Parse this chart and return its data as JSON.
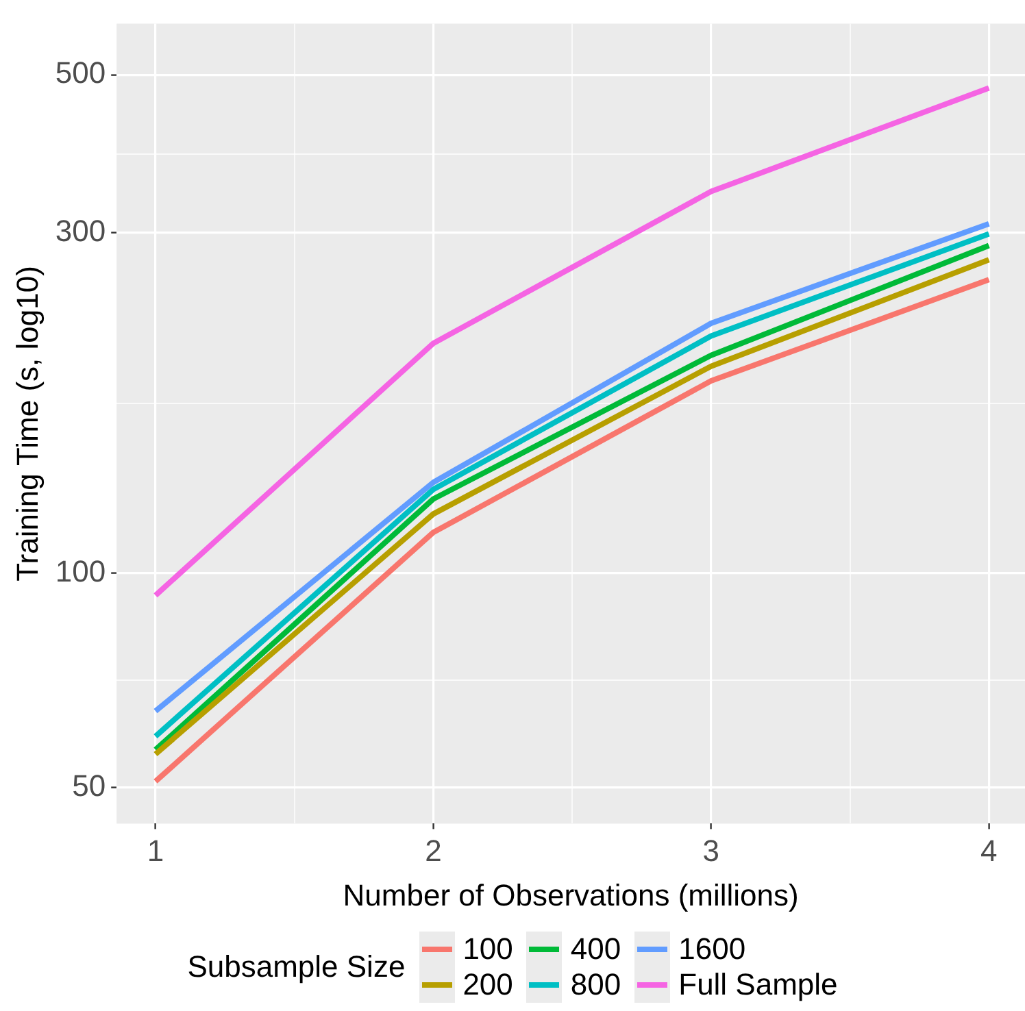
{
  "chart_data": {
    "type": "line",
    "xlabel": "Number of Observations (millions)",
    "ylabel": "Training Time (s, log10)",
    "legend_title": "Subsample Size",
    "x": [
      1,
      2,
      3,
      4
    ],
    "series": [
      {
        "name": "100",
        "color": "#f8766d",
        "values": [
          51,
          114,
          186,
          258
        ]
      },
      {
        "name": "200",
        "color": "#b79f00",
        "values": [
          55.7,
          121,
          195,
          275
        ]
      },
      {
        "name": "400",
        "color": "#00ba38",
        "values": [
          56.5,
          127,
          202,
          288
        ]
      },
      {
        "name": "800",
        "color": "#00bfc4",
        "values": [
          59,
          131,
          215,
          299
        ]
      },
      {
        "name": "1600",
        "color": "#619cff",
        "values": [
          64,
          134,
          224,
          309
        ]
      },
      {
        "name": "Full Sample",
        "color": "#f564e3",
        "values": [
          93,
          210,
          343,
          479
        ]
      }
    ],
    "xlim": [
      0.86,
      4.13
    ],
    "xticks": [
      1,
      {
        "value": 1.5,
        "label": null
      },
      2,
      {
        "value": 2.5,
        "label": null
      },
      3,
      {
        "value": 3.5,
        "label": null
      },
      4
    ],
    "ylim": [
      44.5,
      590
    ],
    "yticks": [
      50,
      {
        "value": 70.7,
        "label": null
      },
      100,
      {
        "value": 173,
        "label": null
      },
      300,
      {
        "value": 387,
        "label": null
      },
      500
    ],
    "log": "y",
    "grid": true,
    "legend": "bottom"
  }
}
